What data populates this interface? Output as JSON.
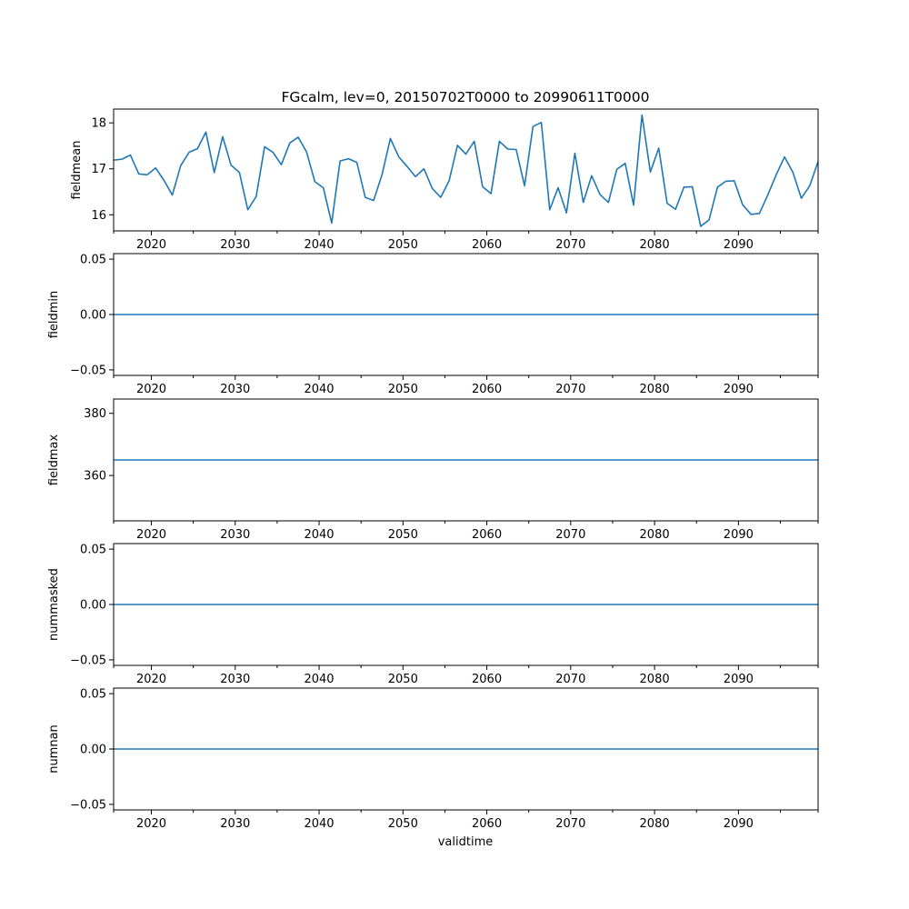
{
  "chart_data": {
    "type": "line",
    "title": "FGcalm, lev=0, 20150702T0000 to 20990611T0000",
    "xlabel": "validtime",
    "xlim": [
      2015.5,
      2099.5
    ],
    "x_major_ticks": [
      2020,
      2030,
      2040,
      2050,
      2060,
      2070,
      2080,
      2090
    ],
    "x_major_tick_labels": [
      "2020",
      "2030",
      "2040",
      "2050",
      "2060",
      "2070",
      "2080",
      "2090"
    ],
    "x_minor_ticks": [
      2015.5,
      2025,
      2035,
      2045,
      2055,
      2065,
      2075,
      2085,
      2095,
      2099.5
    ],
    "line_color": "#1f77b4",
    "x": [
      2015.5,
      2016.5,
      2017.5,
      2018.5,
      2019.5,
      2020.5,
      2021.5,
      2022.5,
      2023.5,
      2024.5,
      2025.5,
      2026.5,
      2027.5,
      2028.5,
      2029.5,
      2030.5,
      2031.5,
      2032.5,
      2033.5,
      2034.5,
      2035.5,
      2036.5,
      2037.5,
      2038.5,
      2039.5,
      2040.5,
      2041.5,
      2042.5,
      2043.5,
      2044.5,
      2045.5,
      2046.5,
      2047.5,
      2048.5,
      2049.5,
      2050.5,
      2051.5,
      2052.5,
      2053.5,
      2054.5,
      2055.5,
      2056.5,
      2057.5,
      2058.5,
      2059.5,
      2060.5,
      2061.5,
      2062.5,
      2063.5,
      2064.5,
      2065.5,
      2066.5,
      2067.5,
      2068.5,
      2069.5,
      2070.5,
      2071.5,
      2072.5,
      2073.5,
      2074.5,
      2075.5,
      2076.5,
      2077.5,
      2078.5,
      2079.5,
      2080.5,
      2081.5,
      2082.5,
      2083.5,
      2084.5,
      2085.5,
      2086.5,
      2087.5,
      2088.5,
      2089.5,
      2090.5,
      2091.5,
      2092.5,
      2093.5,
      2094.5,
      2095.5,
      2096.5,
      2097.5,
      2098.5,
      2099.5
    ],
    "subplots": [
      {
        "ylabel": "fieldmean",
        "ylim": [
          15.65,
          18.3
        ],
        "y_ticks": [
          16,
          17,
          18
        ],
        "y_tick_labels": [
          "16",
          "17",
          "18"
        ],
        "values": [
          17.19,
          17.21,
          17.3,
          16.89,
          16.87,
          17.02,
          16.75,
          16.43,
          17.07,
          17.36,
          17.44,
          17.8,
          16.92,
          17.7,
          17.08,
          16.92,
          16.11,
          16.4,
          17.48,
          17.36,
          17.09,
          17.56,
          17.69,
          17.37,
          16.72,
          16.59,
          15.82,
          17.17,
          17.22,
          17.14,
          16.38,
          16.31,
          16.87,
          17.66,
          17.26,
          17.05,
          16.83,
          17.0,
          16.57,
          16.38,
          16.74,
          17.51,
          17.32,
          17.6,
          16.61,
          16.46,
          17.6,
          17.43,
          17.42,
          16.63,
          17.92,
          18.01,
          16.11,
          16.59,
          16.04,
          17.34,
          16.27,
          16.85,
          16.44,
          16.27,
          16.99,
          17.12,
          16.21,
          18.17,
          16.93,
          17.45,
          16.25,
          16.12,
          16.6,
          16.61,
          15.75,
          15.89,
          16.6,
          16.73,
          16.74,
          16.22,
          16.01,
          16.03,
          16.43,
          16.87,
          17.26,
          16.92,
          16.36,
          16.63,
          17.16
        ]
      },
      {
        "ylabel": "fieldmin",
        "ylim": [
          -0.055,
          0.055
        ],
        "y_ticks": [
          -0.05,
          0,
          0.05
        ],
        "y_tick_labels": [
          "−0.05",
          "0.00",
          "0.05"
        ],
        "constant_value": 0
      },
      {
        "ylabel": "fieldmax",
        "ylim": [
          345.4,
          384.6
        ],
        "y_ticks": [
          360,
          380
        ],
        "y_tick_labels": [
          "360",
          "380"
        ],
        "constant_value": 365
      },
      {
        "ylabel": "nummasked",
        "ylim": [
          -0.055,
          0.055
        ],
        "y_ticks": [
          -0.05,
          0,
          0.05
        ],
        "y_tick_labels": [
          "−0.05",
          "0.00",
          "0.05"
        ],
        "constant_value": 0
      },
      {
        "ylabel": "numnan",
        "ylim": [
          -0.055,
          0.055
        ],
        "y_ticks": [
          -0.05,
          0,
          0.05
        ],
        "y_tick_labels": [
          "−0.05",
          "0.00",
          "0.05"
        ],
        "constant_value": 0
      }
    ]
  }
}
